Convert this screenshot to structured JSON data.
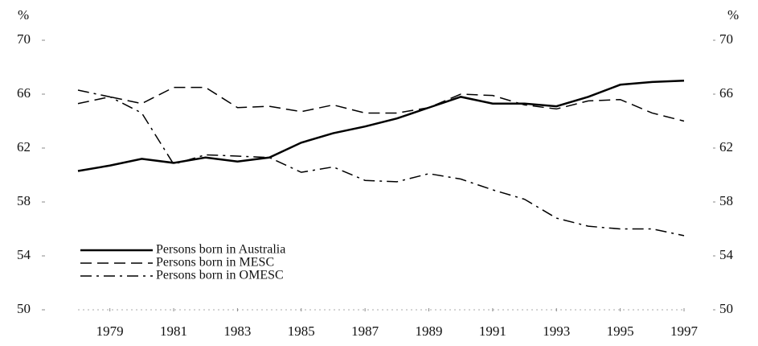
{
  "chart_data": {
    "type": "line",
    "y_axis_label": "%",
    "y2_axis_label": "%",
    "x": [
      1978,
      1979,
      1980,
      1981,
      1982,
      1983,
      1984,
      1985,
      1986,
      1987,
      1988,
      1989,
      1990,
      1991,
      1992,
      1993,
      1994,
      1995,
      1996,
      1997
    ],
    "xlim": [
      1978,
      1997
    ],
    "xticks": [
      1979,
      1981,
      1983,
      1985,
      1987,
      1989,
      1991,
      1993,
      1995,
      1997
    ],
    "ylim": [
      50,
      70
    ],
    "yticks": [
      50,
      54,
      58,
      62,
      66,
      70
    ],
    "y2lim": [
      50,
      70
    ],
    "y2ticks": [
      50,
      54,
      58,
      62,
      66,
      70
    ],
    "legend": "lower left",
    "series": [
      {
        "name": "Persons born in Australia",
        "color": "#000000",
        "dash": "solid",
        "values": [
          60.3,
          60.7,
          61.2,
          60.9,
          61.3,
          61.0,
          61.3,
          62.4,
          63.1,
          63.6,
          64.2,
          65.0,
          65.8,
          65.3,
          65.3,
          65.1,
          65.8,
          66.7,
          66.9,
          67.0
        ]
      },
      {
        "name": "Persons born in MESC",
        "color": "#000000",
        "dash": "dashed",
        "values": [
          65.3,
          65.8,
          65.3,
          66.5,
          66.5,
          65.0,
          65.1,
          64.7,
          65.2,
          64.6,
          64.6,
          65.0,
          66.0,
          65.9,
          65.2,
          64.9,
          65.5,
          65.6,
          64.6,
          64.0
        ]
      },
      {
        "name": "Persons born in OMESC",
        "color": "#000000",
        "dash": "dashdot",
        "values": [
          66.3,
          65.8,
          64.6,
          60.8,
          61.5,
          61.4,
          61.3,
          60.2,
          60.6,
          59.6,
          59.5,
          60.1,
          59.7,
          58.9,
          58.2,
          56.8,
          56.2,
          56.0,
          56.0,
          55.5
        ]
      }
    ]
  }
}
